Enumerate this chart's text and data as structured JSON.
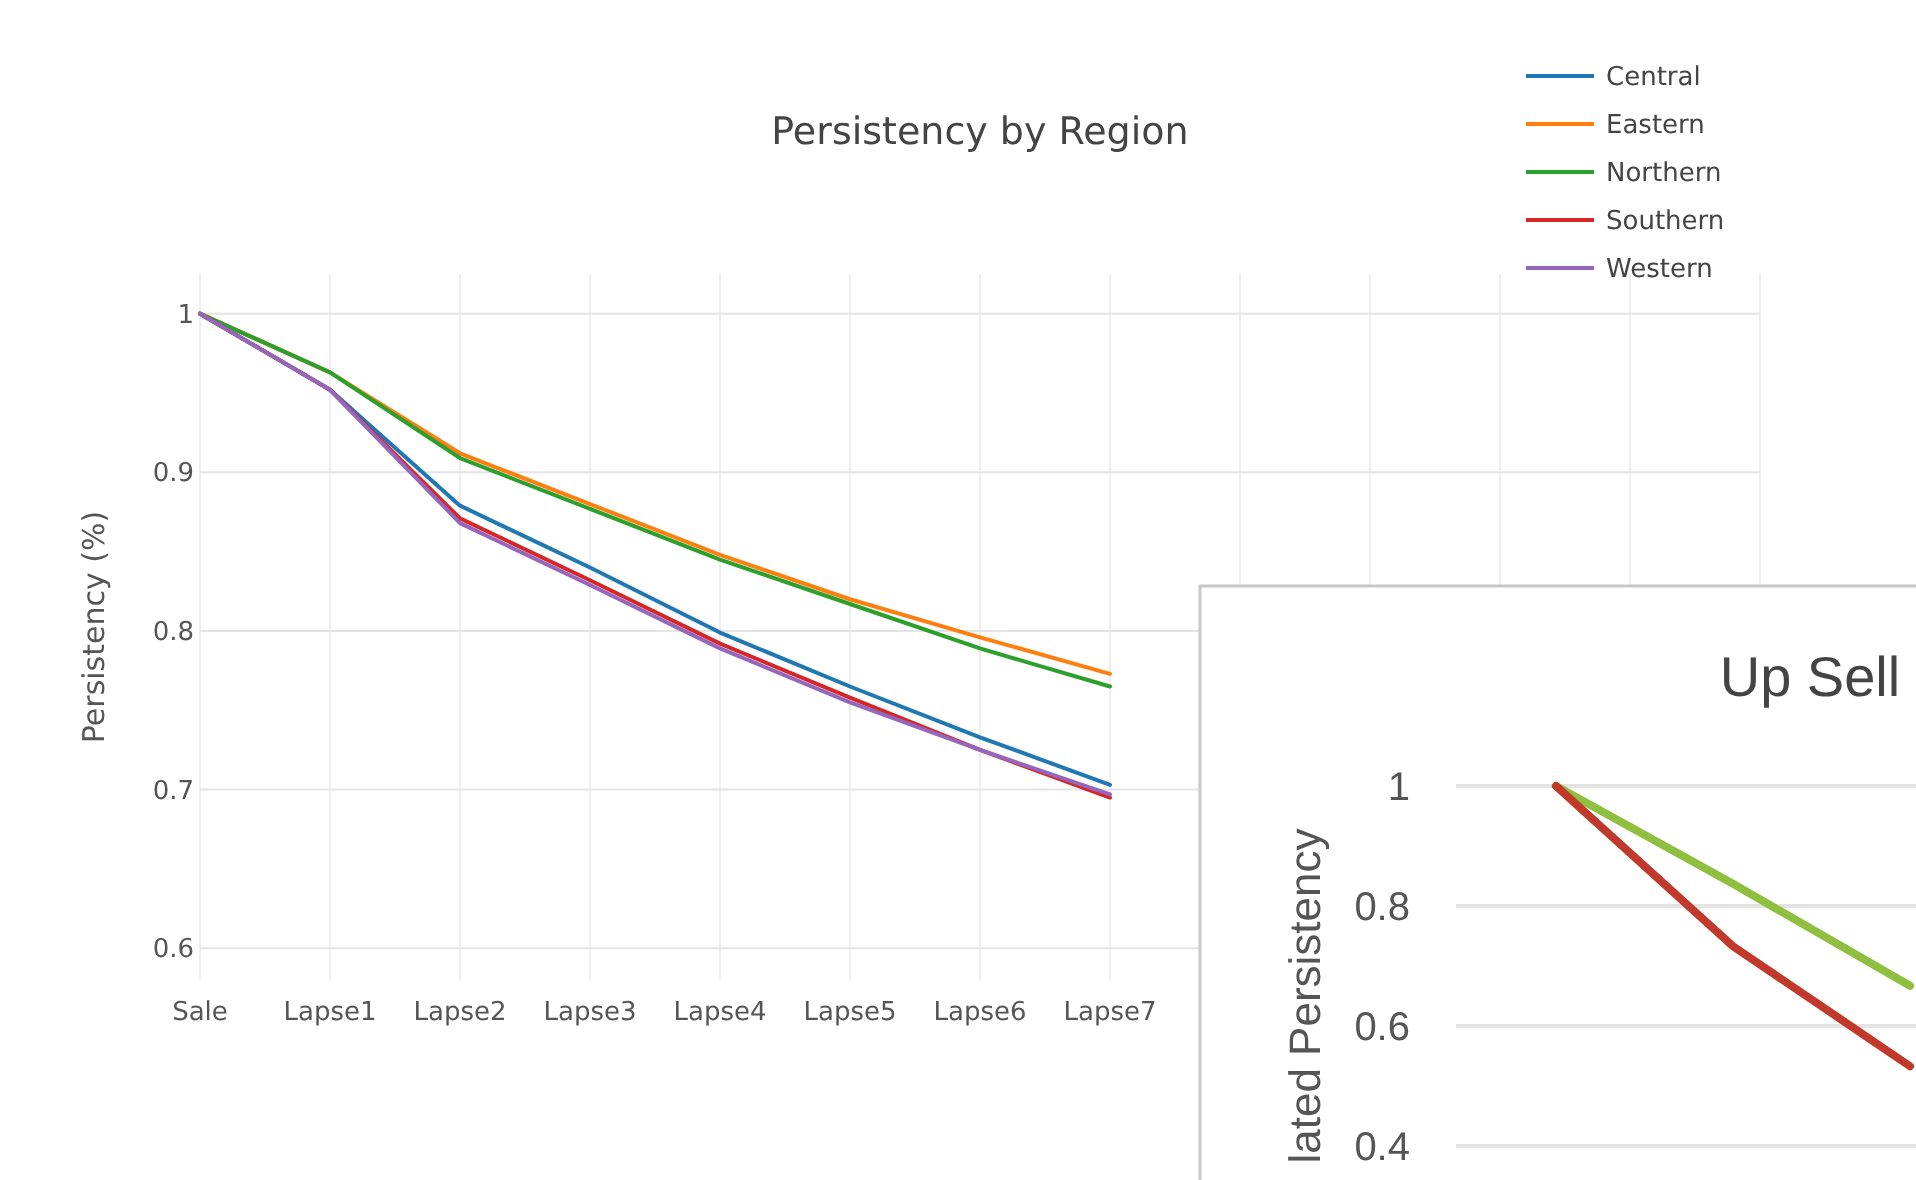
{
  "chart_data": [
    {
      "type": "line",
      "title": "Persistency by Region",
      "ylabel": "Persistency (%)",
      "categories": [
        "Sale",
        "Lapse1",
        "Lapse2",
        "Lapse3",
        "Lapse4",
        "Lapse5",
        "Lapse6",
        "Lapse7",
        null,
        null,
        null,
        null,
        null
      ],
      "ylim": [
        0.58,
        1.025
      ],
      "yticks": [
        0.6,
        0.7,
        0.8,
        0.9,
        1
      ],
      "grid": true,
      "legend": "top right",
      "line_style": "solid",
      "marker": "none",
      "series": [
        {
          "name": "Central",
          "color": "#1f77b4",
          "values": [
            1,
            0.952,
            0.879,
            0.84,
            0.799,
            0.765,
            0.733,
            0.703,
            null,
            null,
            null,
            null,
            null
          ]
        },
        {
          "name": "Eastern",
          "color": "#ff7f0e",
          "values": [
            1,
            0.963,
            0.912,
            0.88,
            0.848,
            0.82,
            0.796,
            0.773,
            null,
            null,
            null,
            null,
            null
          ]
        },
        {
          "name": "Northern",
          "color": "#2ca02c",
          "values": [
            1,
            0.963,
            0.909,
            0.877,
            0.845,
            0.817,
            0.789,
            0.765,
            null,
            null,
            null,
            null,
            null
          ]
        },
        {
          "name": "Southern",
          "color": "#d62728",
          "values": [
            1,
            0.952,
            0.871,
            0.832,
            0.792,
            0.758,
            0.725,
            0.695,
            null,
            null,
            null,
            null,
            null
          ]
        },
        {
          "name": "Western",
          "color": "#9467bd",
          "values": [
            1,
            0.952,
            0.868,
            0.829,
            0.789,
            0.755,
            0.725,
            0.697,
            null,
            null,
            null,
            null,
            null
          ]
        }
      ]
    },
    {
      "type": "line",
      "title": "Up Sell",
      "ylabel": "lated Persistency",
      "categories": [
        null,
        null,
        null
      ],
      "ylim": [
        0.4,
        1
      ],
      "yticks": [
        0.4,
        0.6,
        0.8,
        1
      ],
      "grid": "y",
      "legend": false,
      "line_style": "solid",
      "marker": "none",
      "series": [
        {
          "color": "#8fbf3f",
          "values": [
            1,
            0.837,
            0.667
          ]
        },
        {
          "color": "#c0392b",
          "values": [
            1,
            0.733,
            0.533
          ]
        }
      ]
    }
  ]
}
